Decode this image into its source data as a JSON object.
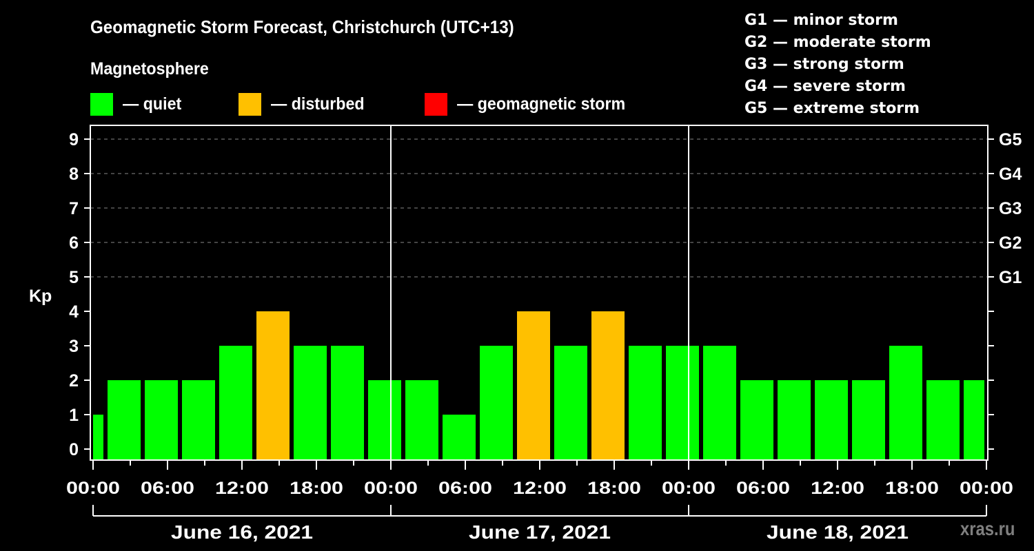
{
  "title": "Geomagnetic Storm Forecast, Christchurch (UTC+13)",
  "subtitle": "Magnetosphere",
  "legend": [
    {
      "label": "— quiet",
      "color": "#00ff00"
    },
    {
      "label": "— disturbed",
      "color": "#ffc000"
    },
    {
      "label": "— geomagnetic storm",
      "color": "#ff0000"
    }
  ],
  "g_scale_legend": [
    "G1 — minor storm",
    "G2 — moderate storm",
    "G3 — strong storm",
    "G4 — severe storm",
    "G5 — extreme storm"
  ],
  "watermark": "xras.ru",
  "colors": {
    "quiet": "#00ff00",
    "disturbed": "#ffc000",
    "storm": "#ff0000",
    "background": "#000000",
    "axis": "#ffffff",
    "grid": "#888888"
  },
  "chart_data": {
    "type": "bar",
    "title": "Geomagnetic Storm Forecast, Christchurch (UTC+13)",
    "ylabel": "Kp",
    "ylim": [
      0,
      9
    ],
    "yticks": [
      0,
      1,
      2,
      3,
      4,
      5,
      6,
      7,
      8,
      9
    ],
    "right_axis_labels": [
      {
        "kp": 5,
        "label": "G1"
      },
      {
        "kp": 6,
        "label": "G2"
      },
      {
        "kp": 7,
        "label": "G3"
      },
      {
        "kp": 8,
        "label": "G4"
      },
      {
        "kp": 9,
        "label": "G5"
      }
    ],
    "grid": "dashed horizontal at Kp 5-9",
    "xtick_labels": [
      "00:00",
      "06:00",
      "12:00",
      "18:00",
      "00:00",
      "06:00",
      "12:00",
      "18:00",
      "00:00",
      "06:00",
      "12:00",
      "18:00",
      "00:00"
    ],
    "days": [
      "June 16, 2021",
      "June 17, 2021",
      "June 18, 2021"
    ],
    "bar_interval_hours": 3,
    "bars": [
      {
        "start_h": -2,
        "kp": 1,
        "status": "quiet"
      },
      {
        "start_h": 1,
        "kp": 2,
        "status": "quiet"
      },
      {
        "start_h": 4,
        "kp": 2,
        "status": "quiet"
      },
      {
        "start_h": 7,
        "kp": 2,
        "status": "quiet"
      },
      {
        "start_h": 10,
        "kp": 3,
        "status": "quiet"
      },
      {
        "start_h": 13,
        "kp": 4,
        "status": "disturbed"
      },
      {
        "start_h": 16,
        "kp": 3,
        "status": "quiet"
      },
      {
        "start_h": 19,
        "kp": 3,
        "status": "quiet"
      },
      {
        "start_h": 22,
        "kp": 2,
        "status": "quiet"
      },
      {
        "start_h": 25,
        "kp": 2,
        "status": "quiet"
      },
      {
        "start_h": 28,
        "kp": 1,
        "status": "quiet"
      },
      {
        "start_h": 31,
        "kp": 3,
        "status": "quiet"
      },
      {
        "start_h": 34,
        "kp": 4,
        "status": "disturbed"
      },
      {
        "start_h": 37,
        "kp": 3,
        "status": "quiet"
      },
      {
        "start_h": 40,
        "kp": 4,
        "status": "disturbed"
      },
      {
        "start_h": 43,
        "kp": 3,
        "status": "quiet"
      },
      {
        "start_h": 46,
        "kp": 3,
        "status": "quiet"
      },
      {
        "start_h": 49,
        "kp": 3,
        "status": "quiet"
      },
      {
        "start_h": 52,
        "kp": 2,
        "status": "quiet"
      },
      {
        "start_h": 55,
        "kp": 2,
        "status": "quiet"
      },
      {
        "start_h": 58,
        "kp": 2,
        "status": "quiet"
      },
      {
        "start_h": 61,
        "kp": 2,
        "status": "quiet"
      },
      {
        "start_h": 64,
        "kp": 3,
        "status": "quiet"
      },
      {
        "start_h": 67,
        "kp": 2,
        "status": "quiet"
      },
      {
        "start_h": 70,
        "kp": 2,
        "status": "quiet"
      }
    ]
  }
}
